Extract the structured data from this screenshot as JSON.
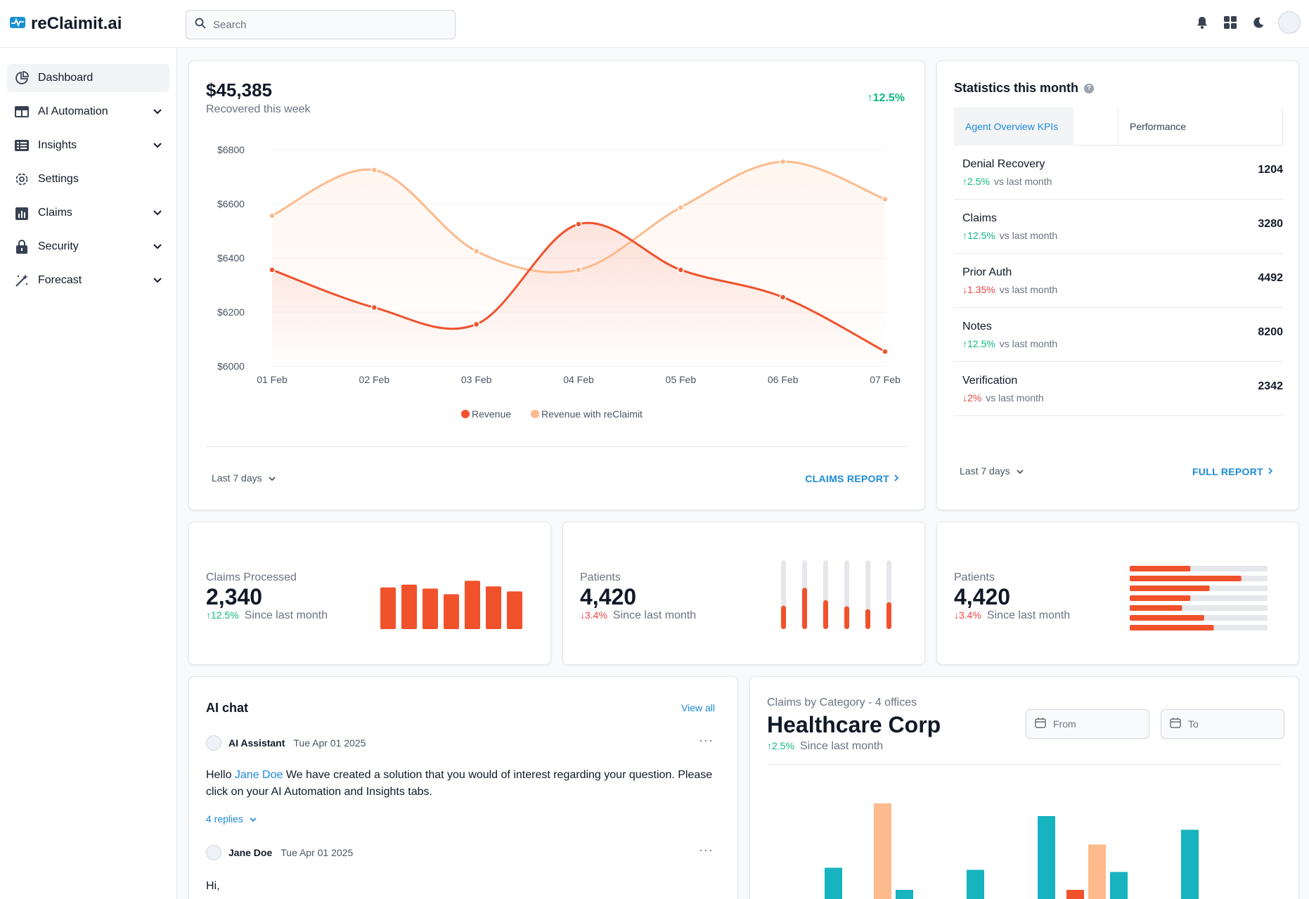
{
  "app": {
    "name": "reClaimit.ai"
  },
  "search": {
    "placeholder": "Search"
  },
  "top_icons": [
    "bell-icon",
    "apps-grid-icon",
    "moon-icon",
    "avatar"
  ],
  "sidebar": {
    "items": [
      {
        "label": "Dashboard",
        "icon": "pie-chart-icon",
        "active": true,
        "expandable": false
      },
      {
        "label": "AI Automation",
        "icon": "table-icon",
        "active": false,
        "expandable": true
      },
      {
        "label": "Insights",
        "icon": "list-icon",
        "active": false,
        "expandable": true
      },
      {
        "label": "Settings",
        "icon": "gear-icon",
        "active": false,
        "expandable": false
      },
      {
        "label": "Claims",
        "icon": "clipboard-chart-icon",
        "active": false,
        "expandable": true
      },
      {
        "label": "Security",
        "icon": "lock-icon",
        "active": false,
        "expandable": true
      },
      {
        "label": "Forecast",
        "icon": "magic-wand-icon",
        "active": false,
        "expandable": true
      }
    ]
  },
  "revenue_card": {
    "amount": "$45,385",
    "subtitle": "Recovered this week",
    "change": "12.5%",
    "range_label": "Last 7 days",
    "report_link": "CLAIMS REPORT"
  },
  "chart_data": {
    "type": "line",
    "x": [
      "01 Feb",
      "02 Feb",
      "03 Feb",
      "04 Feb",
      "05 Feb",
      "06 Feb",
      "07 Feb"
    ],
    "ylim": [
      6000,
      6800
    ],
    "yticks": [
      "$6800",
      "$6600",
      "$6400",
      "$6200",
      "$6000"
    ],
    "series": [
      {
        "name": "Revenue",
        "color": "#f0522c",
        "values": [
          6356,
          6217,
          6155,
          6525,
          6356,
          6255,
          6054
        ]
      },
      {
        "name": "Revenue with reClaimit",
        "color": "#fdba8c",
        "values": [
          6556,
          6725,
          6425,
          6356,
          6587,
          6756,
          6617
        ]
      }
    ],
    "legend_position": "bottom"
  },
  "stats_card": {
    "title": "Statistics this month",
    "tabs": [
      "Agent Overview KPIs",
      "Performance"
    ],
    "kpis": [
      {
        "name": "Denial Recovery",
        "delta": "2.5%",
        "direction": "up",
        "vs": "vs last month",
        "value": "1204"
      },
      {
        "name": "Claims",
        "delta": "12.5%",
        "direction": "up",
        "vs": "vs last month",
        "value": "3280"
      },
      {
        "name": "Prior Auth",
        "delta": "1.35%",
        "direction": "down",
        "vs": "vs last month",
        "value": "4492"
      },
      {
        "name": "Notes",
        "delta": "12.5%",
        "direction": "up",
        "vs": "vs last month",
        "value": "8200"
      },
      {
        "name": "Verification",
        "delta": "2%",
        "direction": "down",
        "vs": "vs last month",
        "value": "2342"
      }
    ],
    "range_label": "Last 7 days",
    "report_link": "FULL REPORT"
  },
  "mini_cards": [
    {
      "label": "Claims Processed",
      "value": "2,340",
      "delta": "12.5%",
      "direction": "up",
      "since": "Since last month",
      "bars": [
        0.74,
        0.79,
        0.72,
        0.62,
        0.86,
        0.76,
        0.67
      ]
    },
    {
      "label": "Patients",
      "value": "4,420",
      "delta": "3.4%",
      "direction": "down",
      "since": "Since last month",
      "levels": [
        0.34,
        0.6,
        0.42,
        0.33,
        0.29,
        0.39,
        0.33
      ]
    },
    {
      "label": "Patients",
      "value": "4,420",
      "delta": "3.4%",
      "direction": "down",
      "since": "Since last month",
      "levels": [
        0.44,
        0.81,
        0.58,
        0.44,
        0.38,
        0.54,
        0.61
      ]
    }
  ],
  "chat": {
    "title": "AI chat",
    "view_all": "View all",
    "messages": [
      {
        "author": "AI Assistant",
        "time": "Tue Apr 01 2025",
        "pre": "Hello ",
        "mention": "Jane Doe",
        "post": " We have created a solution that you would of interest regarding your question. Please click on your AI Automation and Insights tabs.",
        "replies": "4 replies"
      },
      {
        "author": "Jane Doe",
        "time": "Tue Apr 01 2025",
        "text": "Hi,"
      }
    ]
  },
  "claims_card": {
    "subtitle": "Claims by Category - 4 offices",
    "title": "Healthcare Corp",
    "delta": "2.5%",
    "direction": "up",
    "since": "Since last month",
    "from_placeholder": "From",
    "to_placeholder": "To",
    "bars": {
      "colors": {
        "teal": "#17b3bf",
        "red": "#f0522c",
        "peach": "#fdba8c"
      },
      "groups": [
        [
          {
            "c": "teal",
            "v": 0.39
          },
          {
            "c": "red",
            "v": 0.05
          },
          {
            "c": "peach",
            "v": 1.0
          },
          {
            "c": "teal",
            "v": 0.18
          }
        ],
        [
          {
            "c": "teal",
            "v": 0.37
          }
        ],
        [
          {
            "c": "peach",
            "v": 0.05
          },
          {
            "c": "teal",
            "v": 0.88
          },
          {
            "c": "red",
            "v": 0.18
          },
          {
            "c": "peach",
            "v": 0.61
          },
          {
            "c": "teal",
            "v": 0.35
          }
        ],
        [
          {
            "c": "peach",
            "v": 0.07
          },
          {
            "c": "teal",
            "v": 0.75
          },
          {
            "c": "teal",
            "v": 0.08
          }
        ]
      ]
    }
  }
}
